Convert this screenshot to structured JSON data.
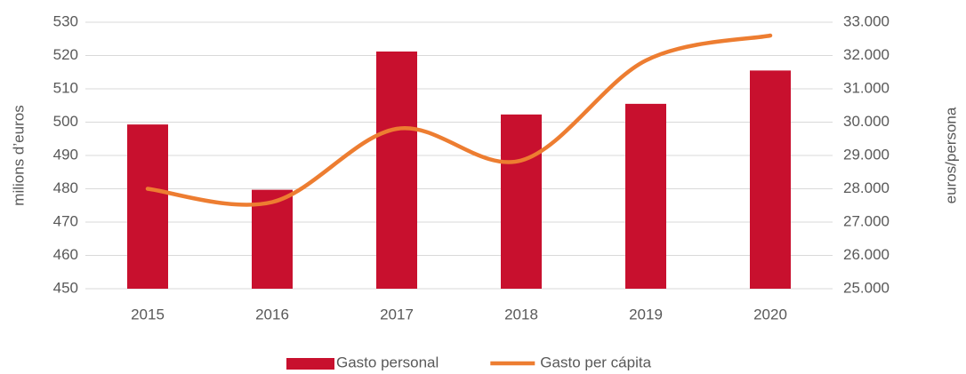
{
  "chart_data": {
    "type": "bar",
    "categories": [
      "2015",
      "2016",
      "2017",
      "2018",
      "2019",
      "2020"
    ],
    "series": [
      {
        "name": "Gasto personal",
        "type": "bar",
        "color": "#c8102e",
        "values": [
          499.3,
          479.7,
          521.2,
          502.3,
          505.5,
          515.5
        ]
      },
      {
        "name": "Gasto per cápita",
        "type": "line",
        "axis": "y2",
        "color": "#ed7d31",
        "values": [
          28000,
          27600,
          29800,
          28850,
          31850,
          32600
        ]
      }
    ],
    "ylabel": "milions d’euros",
    "y2label": "euros/persona",
    "ylim": [
      450,
      530
    ],
    "yticks": [
      450,
      460,
      470,
      480,
      490,
      500,
      510,
      520,
      530
    ],
    "y2lim": [
      25000,
      33000
    ],
    "y2ticks": [
      {
        "value": 25000,
        "label": "25.000"
      },
      {
        "value": 26000,
        "label": "26.000"
      },
      {
        "value": 27000,
        "label": "27.000"
      },
      {
        "value": 28000,
        "label": "28.000"
      },
      {
        "value": 29000,
        "label": "29.000"
      },
      {
        "value": 30000,
        "label": "30.000"
      },
      {
        "value": 31000,
        "label": "31.000"
      },
      {
        "value": 32000,
        "label": "32.000"
      },
      {
        "value": 33000,
        "label": "33.000"
      }
    ],
    "grid": true,
    "legend": "bottom"
  }
}
